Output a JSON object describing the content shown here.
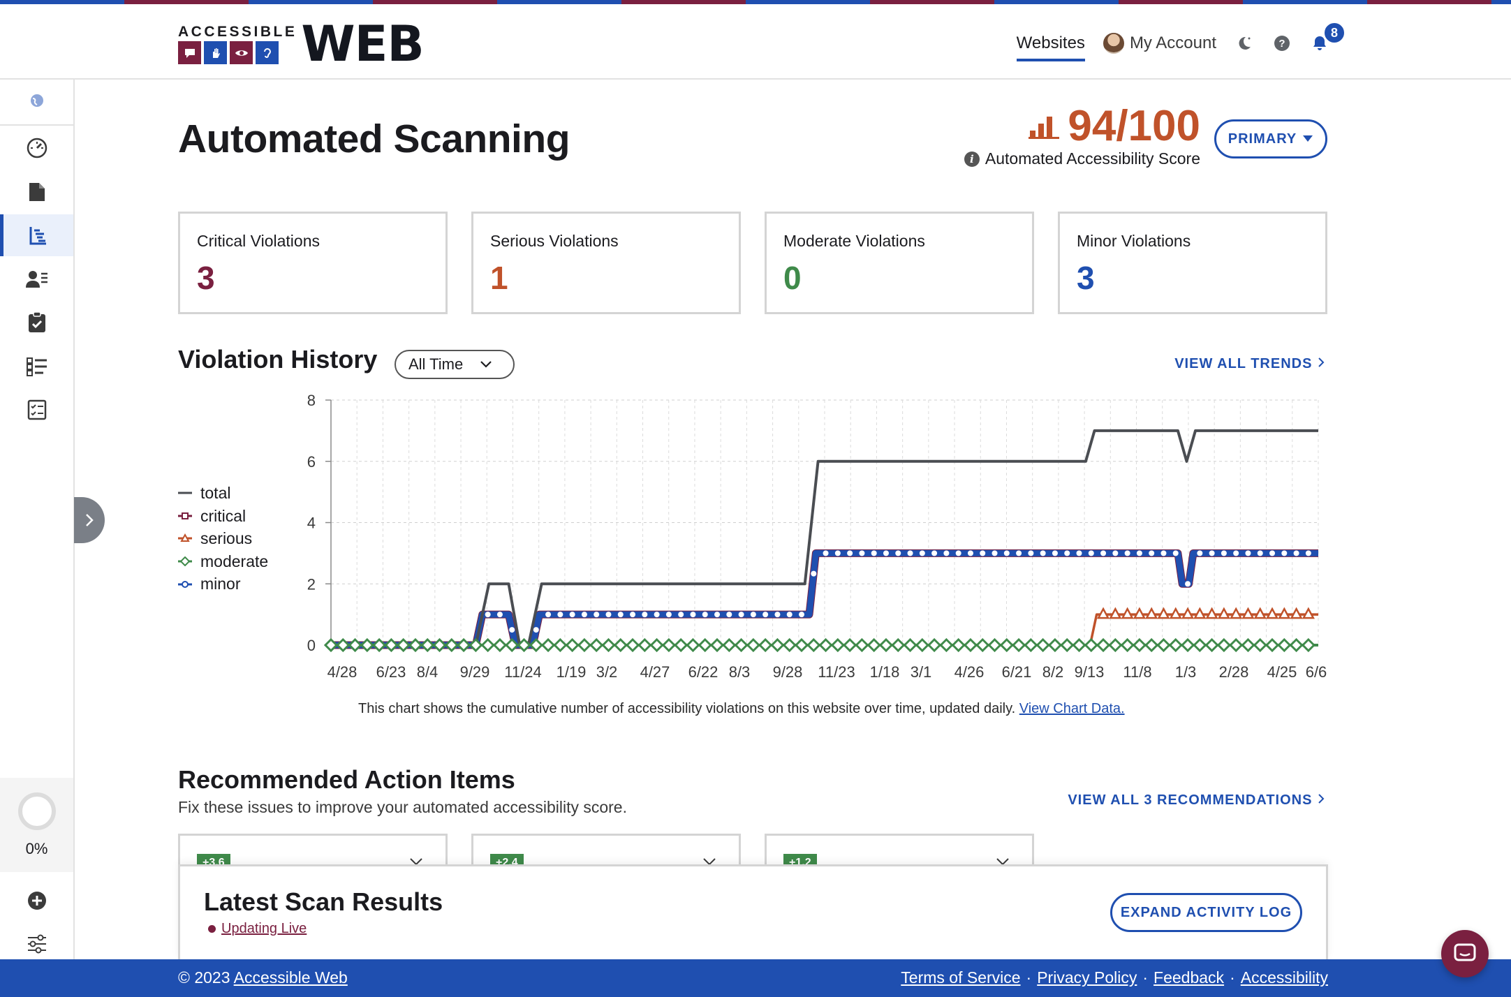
{
  "brand": {
    "small_text": "ACCESSIBLE",
    "big_text": "WEB"
  },
  "nav": {
    "websites": "Websites",
    "account": "My Account",
    "notification_count": "8"
  },
  "page": {
    "title": "Automated Scanning",
    "score": "94/100",
    "score_label": "Automated Accessibility Score",
    "site_selector": "PRIMARY"
  },
  "stats": [
    {
      "label": "Critical Violations",
      "value": "3",
      "color": "#7a2040"
    },
    {
      "label": "Serious Violations",
      "value": "1",
      "color": "#c0522a"
    },
    {
      "label": "Moderate Violations",
      "value": "0",
      "color": "#3f8a4a"
    },
    {
      "label": "Minor Violations",
      "value": "3",
      "color": "#1f4fb0"
    }
  ],
  "history": {
    "title": "Violation History",
    "range": "All Time",
    "trends_link": "VIEW ALL TRENDS",
    "caption": "This chart shows the cumulative number of accessibility violations on this website over time, updated daily.",
    "caption_link": "View Chart Data."
  },
  "chart_data": {
    "type": "line",
    "ylim": [
      0,
      8
    ],
    "yticks": [
      0,
      2,
      4,
      6,
      8
    ],
    "x_tick_labels": [
      "4/28",
      "6/23",
      "8/4",
      "9/29",
      "11/24",
      "1/19",
      "3/2",
      "4/27",
      "6/22",
      "8/3",
      "9/28",
      "11/23",
      "1/18",
      "3/1",
      "4/26",
      "6/21",
      "8/2",
      "9/13",
      "11/8",
      "1/3",
      "2/28",
      "4/25",
      "6/6"
    ],
    "grid": true,
    "legend_position": "left",
    "series": [
      {
        "name": "total",
        "color": "#4a4d52",
        "marker": "none",
        "points": [
          [
            0,
            0
          ],
          [
            6.6,
            0
          ],
          [
            7.2,
            2
          ],
          [
            8.1,
            2
          ],
          [
            8.6,
            0
          ],
          [
            9.0,
            0
          ],
          [
            9.6,
            2
          ],
          [
            21.6,
            2
          ],
          [
            22.2,
            6
          ],
          [
            34.4,
            6
          ],
          [
            34.8,
            7
          ],
          [
            38.6,
            7
          ],
          [
            39.0,
            6
          ],
          [
            39.4,
            7
          ],
          [
            45,
            7
          ]
        ]
      },
      {
        "name": "critical",
        "color": "#7a2040",
        "marker": "square",
        "points": [
          [
            0,
            0
          ],
          [
            6.6,
            0
          ],
          [
            6.9,
            1
          ],
          [
            8.1,
            1
          ],
          [
            8.4,
            0
          ],
          [
            9.2,
            0
          ],
          [
            9.5,
            1
          ],
          [
            21.8,
            1
          ],
          [
            22.1,
            3
          ],
          [
            38.6,
            3
          ],
          [
            38.8,
            2
          ],
          [
            39.1,
            2
          ],
          [
            39.3,
            3
          ],
          [
            45,
            3
          ]
        ]
      },
      {
        "name": "serious",
        "color": "#c0522a",
        "marker": "triangle",
        "points": [
          [
            0,
            0
          ],
          [
            34.6,
            0
          ],
          [
            34.9,
            1
          ],
          [
            45,
            1
          ]
        ]
      },
      {
        "name": "moderate",
        "color": "#3f8a4a",
        "marker": "diamond",
        "points": [
          [
            0,
            0
          ],
          [
            45,
            0
          ]
        ]
      },
      {
        "name": "minor",
        "color": "#1f4fb0",
        "marker": "circle",
        "points": [
          [
            0,
            0
          ],
          [
            6.6,
            0
          ],
          [
            6.9,
            1
          ],
          [
            8.1,
            1
          ],
          [
            8.4,
            0
          ],
          [
            9.2,
            0
          ],
          [
            9.5,
            1
          ],
          [
            21.8,
            1
          ],
          [
            22.1,
            3
          ],
          [
            38.6,
            3
          ],
          [
            38.8,
            2
          ],
          [
            39.1,
            2
          ],
          [
            39.3,
            3
          ],
          [
            45,
            3
          ]
        ]
      }
    ]
  },
  "recommendations": {
    "title": "Recommended Action Items",
    "subtitle": "Fix these issues to improve your automated accessibility score.",
    "link": "VIEW ALL 3 RECOMMENDATIONS",
    "cards": [
      {
        "tag": "+3.6"
      },
      {
        "tag": "+2.4"
      },
      {
        "tag": "+1.2"
      }
    ]
  },
  "scan": {
    "title": "Latest Scan Results",
    "live": "Updating Live",
    "expand": "EXPAND ACTIVITY LOG"
  },
  "sidebar": {
    "progress": "0%"
  },
  "footer": {
    "copyright": "© 2023",
    "brand_link": "Accessible Web",
    "links": [
      "Terms of Service",
      "Privacy Policy",
      "Feedback",
      "Accessibility"
    ],
    "separator": "·"
  }
}
